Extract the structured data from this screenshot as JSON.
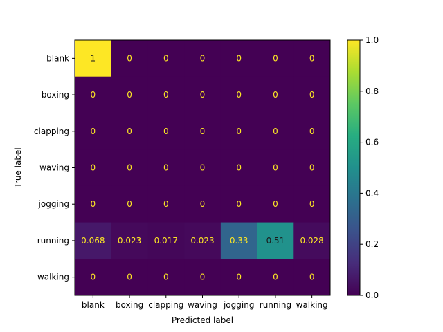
{
  "chart_data": {
    "type": "heatmap",
    "title": "",
    "xlabel": "Predicted label",
    "ylabel": "True label",
    "x_labels": [
      "blank",
      "boxing",
      "clapping",
      "waving",
      "jogging",
      "running",
      "walking"
    ],
    "y_labels": [
      "blank",
      "boxing",
      "clapping",
      "waving",
      "jogging",
      "running",
      "walking"
    ],
    "values": [
      [
        1,
        0,
        0,
        0,
        0,
        0,
        0
      ],
      [
        0,
        0,
        0,
        0,
        0,
        0,
        0
      ],
      [
        0,
        0,
        0,
        0,
        0,
        0,
        0
      ],
      [
        0,
        0,
        0,
        0,
        0,
        0,
        0
      ],
      [
        0,
        0,
        0,
        0,
        0,
        0,
        0
      ],
      [
        0.068,
        0.023,
        0.017,
        0.023,
        0.33,
        0.51,
        0.028
      ],
      [
        0,
        0,
        0,
        0,
        0,
        0,
        0
      ]
    ],
    "colormap": "viridis",
    "colorbar": {
      "range": [
        0,
        1
      ],
      "ticks": [
        0.0,
        0.2,
        0.4,
        0.6,
        0.8,
        1.0
      ],
      "tick_labels": [
        "0.0",
        "0.2",
        "0.4",
        "0.6",
        "0.8",
        "1.0"
      ]
    },
    "grid": false
  }
}
